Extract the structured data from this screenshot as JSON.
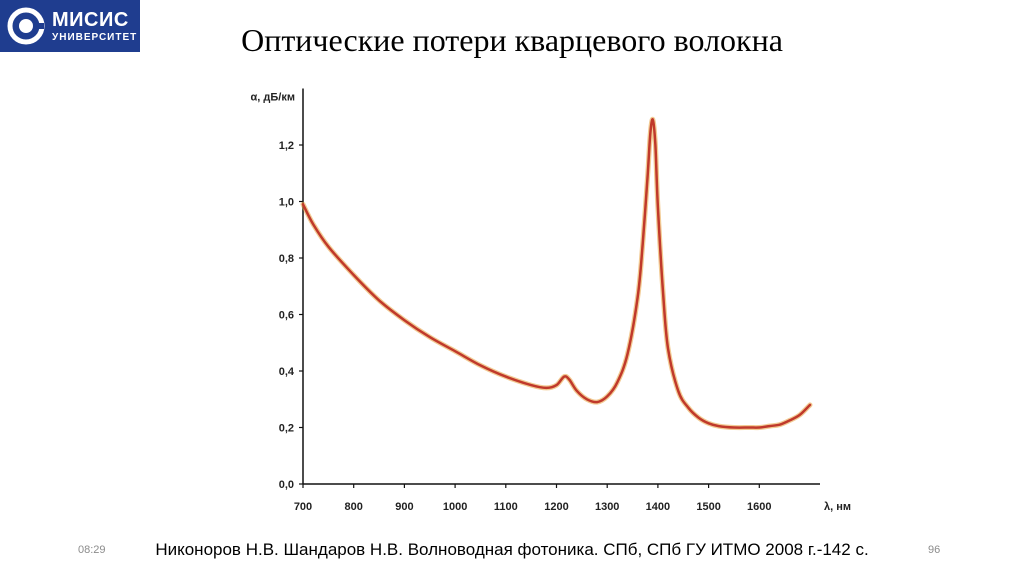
{
  "header": {
    "logo": {
      "line1": "МИСИС",
      "line2": "УНИВЕРСИТЕТ",
      "brand_color": "#1f3d8f",
      "icon": "misis-logo-icon"
    },
    "title": "Оптические потери кварцевого волокна"
  },
  "chart_data": {
    "type": "line",
    "title": "",
    "xlabel": "λ, нм",
    "ylabel": "α, дБ/км",
    "xlim": [
      700,
      1700
    ],
    "ylim": [
      0,
      1.4
    ],
    "x_ticks": [
      700,
      800,
      900,
      1000,
      1100,
      1200,
      1300,
      1400,
      1500,
      1600
    ],
    "x_tick_labels": [
      "700",
      "800",
      "900",
      "1000",
      "1100",
      "1200",
      "1300",
      "1400",
      "1500",
      "1600"
    ],
    "y_ticks": [
      0,
      0.2,
      0.4,
      0.6,
      0.8,
      1.0,
      1.2
    ],
    "y_tick_labels": [
      "0,0",
      "0,2",
      "0,4",
      "0,6",
      "0,8",
      "1,0",
      "1,2"
    ],
    "grid": false,
    "line_color": "#c0392b",
    "series": [
      {
        "x": [
          700,
          720,
          750,
          800,
          850,
          900,
          950,
          1000,
          1050,
          1100,
          1150,
          1180,
          1200,
          1215,
          1225,
          1240,
          1260,
          1280,
          1300,
          1320,
          1340,
          1360,
          1370,
          1380,
          1385,
          1390,
          1395,
          1400,
          1410,
          1420,
          1440,
          1460,
          1480,
          1500,
          1520,
          1550,
          1580,
          1600,
          1620,
          1640,
          1660,
          1680,
          1700
        ],
        "y": [
          0.99,
          0.92,
          0.84,
          0.74,
          0.65,
          0.58,
          0.52,
          0.47,
          0.42,
          0.38,
          0.35,
          0.34,
          0.35,
          0.38,
          0.37,
          0.33,
          0.3,
          0.29,
          0.31,
          0.36,
          0.46,
          0.66,
          0.85,
          1.1,
          1.24,
          1.29,
          1.2,
          0.98,
          0.68,
          0.48,
          0.33,
          0.27,
          0.235,
          0.215,
          0.205,
          0.2,
          0.2,
          0.2,
          0.205,
          0.21,
          0.225,
          0.245,
          0.28
        ]
      }
    ]
  },
  "footer": {
    "time": "08:29",
    "reference": "Никоноров Н.В. Шандаров Н.В. Волноводная фотоника. СПб, СПб ГУ ИТМО 2008 г.-142 с.",
    "page_number": "96"
  }
}
